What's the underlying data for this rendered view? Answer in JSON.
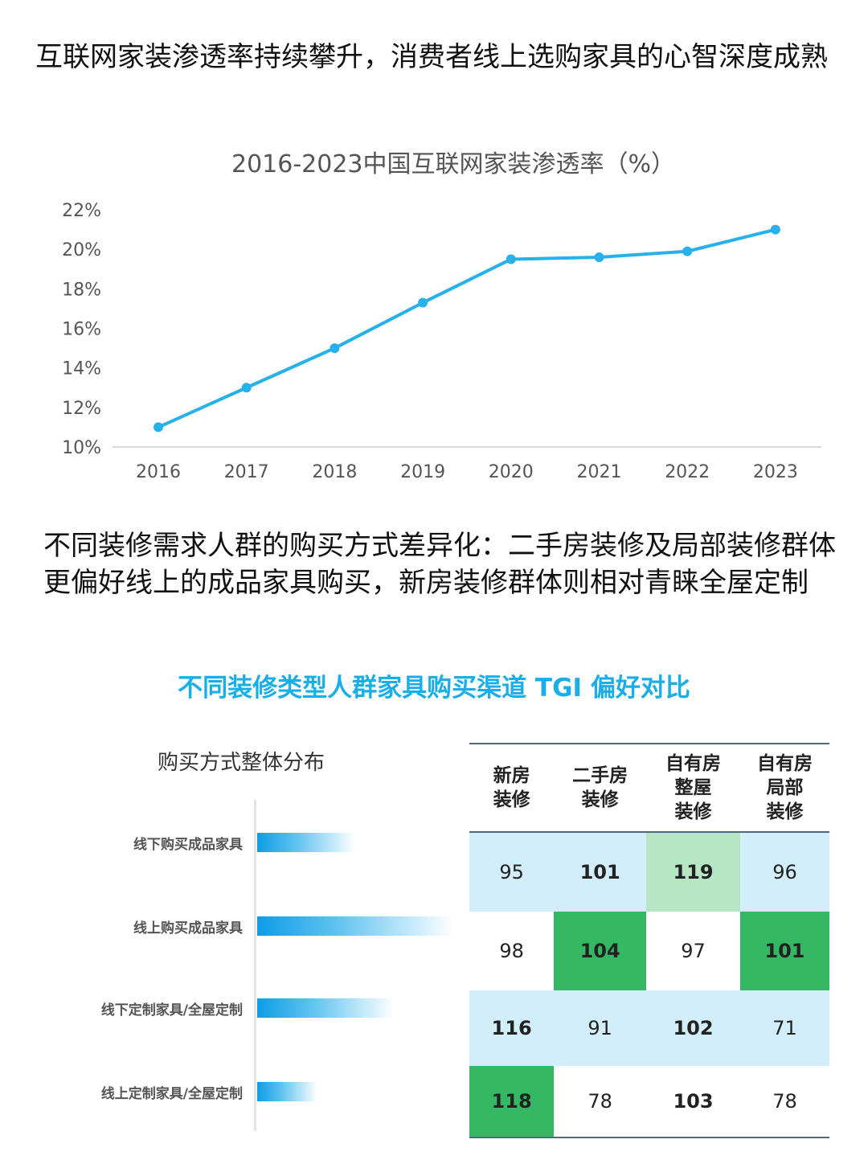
{
  "heading1": "互联网家装渗透率持续攀升，消费者线上选购家具的心智深度成熟",
  "heading2": "不同装修需求人群的购买方式差异化：二手房装修及局部装修群体更偏好线上的成品家具购买，新房装修群体则相对青睐全屋定制",
  "chart_data": [
    {
      "type": "line",
      "title": "2016-2023中国互联网家装渗透率（%）",
      "categories": [
        "2016",
        "2017",
        "2018",
        "2019",
        "2020",
        "2021",
        "2022",
        "2023"
      ],
      "series": [
        {
          "name": "互联网家装渗透率",
          "values": [
            11.0,
            13.0,
            15.0,
            17.3,
            19.5,
            19.6,
            19.9,
            21.0
          ]
        }
      ],
      "y_ticks": [
        "10%",
        "12%",
        "14%",
        "16%",
        "18%",
        "20%",
        "22%"
      ],
      "ylim": [
        10,
        22
      ],
      "xlabel": "",
      "ylabel": "",
      "color": "#26b0ec"
    },
    {
      "type": "table",
      "title": "不同装修类型人群家具购买渠道 TGI 偏好对比",
      "subtitle": "购买方式整体分布",
      "columns": [
        "新房\n装修",
        "二手房\n装修",
        "自有房\n整屋\n装修",
        "自有房\n局部\n装修"
      ],
      "rows": [
        {
          "label": "线下购买成品家具",
          "share": 0.36,
          "values": [
            95,
            101,
            119,
            96
          ],
          "styles": [
            "blue",
            "blue bold",
            "lightgreen",
            "blue"
          ]
        },
        {
          "label": "线上购买成品家具",
          "share": 0.72,
          "values": [
            98,
            104,
            97,
            101
          ],
          "styles": [
            "",
            "green",
            "",
            "green"
          ]
        },
        {
          "label": "线下定制家具/全屋定制",
          "share": 0.5,
          "values": [
            116,
            91,
            102,
            71
          ],
          "styles": [
            "blue bold",
            "blue",
            "blue bold",
            "blue"
          ]
        },
        {
          "label": "线上定制家具/全屋定制",
          "share": 0.22,
          "values": [
            118,
            78,
            103,
            78
          ],
          "styles": [
            "green",
            "",
            "bold",
            ""
          ]
        }
      ],
      "colors": {
        "green": "#34b864",
        "lightgreen": "#b7e6c4",
        "blue": "#d3eefb",
        "title": "#1aaee8"
      }
    }
  ]
}
